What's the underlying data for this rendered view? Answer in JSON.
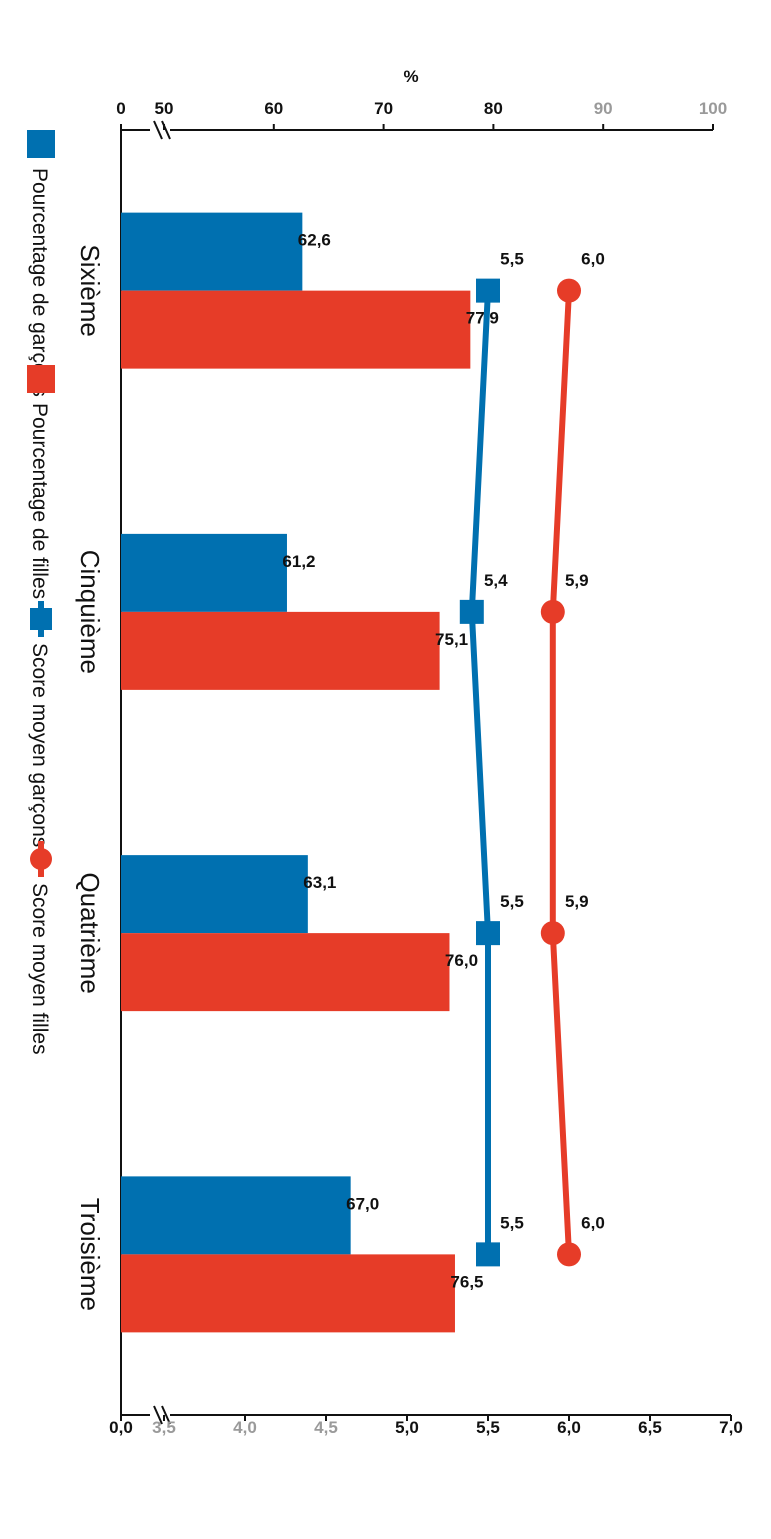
{
  "chart_data": {
    "type": "bar",
    "categories": [
      "Sixième",
      "Cinquième",
      "Quatrième",
      "Troisième"
    ],
    "series": [
      {
        "name": "Pourcentage de garçons",
        "kind": "bar",
        "axis": "left",
        "color": "#0070b0",
        "values": [
          62.6,
          61.2,
          63.1,
          67.0
        ],
        "labels": [
          "62,6",
          "61,2",
          "63,1",
          "67,0"
        ]
      },
      {
        "name": "Pourcentage de filles",
        "kind": "bar",
        "axis": "left",
        "color": "#e63c28",
        "values": [
          77.9,
          75.1,
          76.0,
          76.5
        ],
        "labels": [
          "77,9",
          "75,1",
          "76,0",
          "76,5"
        ]
      },
      {
        "name": "Score moyen garçons",
        "kind": "line",
        "marker": "square",
        "axis": "right",
        "color": "#0070b0",
        "values": [
          5.5,
          5.4,
          5.5,
          5.5
        ],
        "labels": [
          "5,5",
          "5,4",
          "5,5",
          "5,5"
        ]
      },
      {
        "name": "Score moyen filles",
        "kind": "line",
        "marker": "circle",
        "axis": "right",
        "color": "#e63c28",
        "values": [
          6.0,
          5.9,
          5.9,
          6.0
        ],
        "labels": [
          "6,0",
          "5,9",
          "5,9",
          "6,0"
        ]
      }
    ],
    "left_axis": {
      "label": "%",
      "ticks": [
        {
          "value": 0,
          "label": "0",
          "muted": false
        },
        {
          "value": 50,
          "label": "50",
          "muted": false
        },
        {
          "value": 60,
          "label": "60",
          "muted": false
        },
        {
          "value": 70,
          "label": "70",
          "muted": false
        },
        {
          "value": 80,
          "label": "80",
          "muted": false
        },
        {
          "value": 90,
          "label": "90",
          "muted": true
        },
        {
          "value": 100,
          "label": "100",
          "muted": true
        }
      ],
      "axis_break": true
    },
    "right_axis": {
      "label": "",
      "ticks": [
        {
          "value": 0.0,
          "label": "0,0",
          "muted": false
        },
        {
          "value": 3.5,
          "label": "3,5",
          "muted": true
        },
        {
          "value": 4.0,
          "label": "4,0",
          "muted": true
        },
        {
          "value": 4.5,
          "label": "4,5",
          "muted": true
        },
        {
          "value": 5.0,
          "label": "5,0",
          "muted": false
        },
        {
          "value": 5.5,
          "label": "5,5",
          "muted": false
        },
        {
          "value": 6.0,
          "label": "6,0",
          "muted": false
        },
        {
          "value": 6.5,
          "label": "6,5",
          "muted": false
        },
        {
          "value": 7.0,
          "label": "7,0",
          "muted": false
        }
      ],
      "axis_break": true
    },
    "legend_position": "bottom",
    "orientation": "rotated 90° clockwise",
    "grid": false
  }
}
